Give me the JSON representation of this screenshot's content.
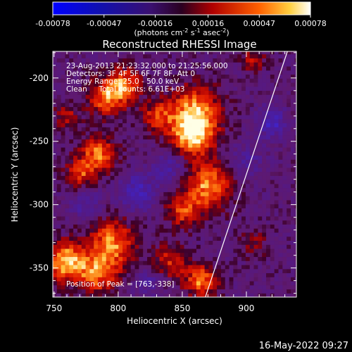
{
  "chart_data": {
    "type": "heatmap",
    "title": "Reconstructed RHESSI Image",
    "xlabel": "Heliocentric X (arcsec)",
    "ylabel": "Heliocentric Y (arcsec)",
    "xlim": [
      749,
      939
    ],
    "ylim": [
      -373,
      -179
    ],
    "x_ticks": [
      "750",
      "800",
      "850",
      "900"
    ],
    "x_tick_values": [
      750,
      800,
      850,
      900
    ],
    "y_ticks": [
      "-200",
      "-250",
      "-300",
      "-350"
    ],
    "y_tick_values": [
      -200,
      -250,
      -300,
      -350
    ],
    "colorbar": {
      "ticks": [
        "-0.00078",
        "-0.00047",
        "-0.00016",
        "0.00016",
        "0.00047",
        "0.00078"
      ],
      "tick_values": [
        -0.00078,
        -0.00047,
        -0.00016,
        0.00016,
        0.00047,
        0.00078
      ],
      "range": [
        -0.00078,
        0.00078
      ],
      "unit_label": "(photons cm",
      "unit_sup1": "-2",
      "unit_s": " s",
      "unit_sup2": "-1",
      "unit_asec": " asec",
      "unit_sup3": "-2",
      "unit_close": ")"
    },
    "annotations": [
      "23-Aug-2013 21:23:32.000 to 21:25:56.000",
      "Detectors: 3F 4F 5F 6F 7F 8F, Att 0",
      "Energy Range: 25.0 - 50.0 keV",
      "Clean     Total counts: 6.61E+03"
    ],
    "peak_label": "Position of Peak = [763,-338]",
    "peak": [
      763,
      -338
    ],
    "limb_line": [
      [
        868,
        -373
      ],
      [
        932,
        -179
      ]
    ],
    "intensity_blobs": [
      {
        "x": 760,
        "y": -345,
        "s": 11,
        "v": 1.0
      },
      {
        "x": 790,
        "y": -215,
        "s": 10,
        "v": 0.75
      },
      {
        "x": 805,
        "y": -205,
        "s": 9,
        "v": 0.8
      },
      {
        "x": 785,
        "y": -260,
        "s": 10,
        "v": 0.8
      },
      {
        "x": 770,
        "y": -275,
        "s": 8,
        "v": 0.6
      },
      {
        "x": 830,
        "y": -230,
        "s": 9,
        "v": 0.55
      },
      {
        "x": 860,
        "y": -225,
        "s": 14,
        "v": 0.8
      },
      {
        "x": 858,
        "y": -245,
        "s": 12,
        "v": 0.9
      },
      {
        "x": 870,
        "y": -285,
        "s": 13,
        "v": 0.85
      },
      {
        "x": 850,
        "y": -305,
        "s": 9,
        "v": 0.6
      },
      {
        "x": 795,
        "y": -330,
        "s": 13,
        "v": 0.8
      },
      {
        "x": 785,
        "y": -355,
        "s": 11,
        "v": 0.7
      },
      {
        "x": 840,
        "y": -345,
        "s": 10,
        "v": 0.55
      },
      {
        "x": 865,
        "y": -360,
        "s": 9,
        "v": 0.8
      },
      {
        "x": 905,
        "y": -185,
        "s": 7,
        "v": 0.45
      },
      {
        "x": 760,
        "y": -230,
        "s": 7,
        "v": 0.45
      },
      {
        "x": 905,
        "y": -330,
        "s": 8,
        "v": 0.35
      },
      {
        "x": 815,
        "y": -290,
        "s": 10,
        "v": -0.55
      },
      {
        "x": 840,
        "y": -270,
        "s": 9,
        "v": -0.45
      },
      {
        "x": 920,
        "y": -235,
        "s": 8,
        "v": -0.6
      },
      {
        "x": 900,
        "y": -265,
        "s": 10,
        "v": -0.3
      },
      {
        "x": 775,
        "y": -300,
        "s": 8,
        "v": -0.4
      },
      {
        "x": 825,
        "y": -360,
        "s": 8,
        "v": -0.35
      }
    ]
  },
  "footer": {
    "timestamp": "16-May-2022 09:27"
  }
}
